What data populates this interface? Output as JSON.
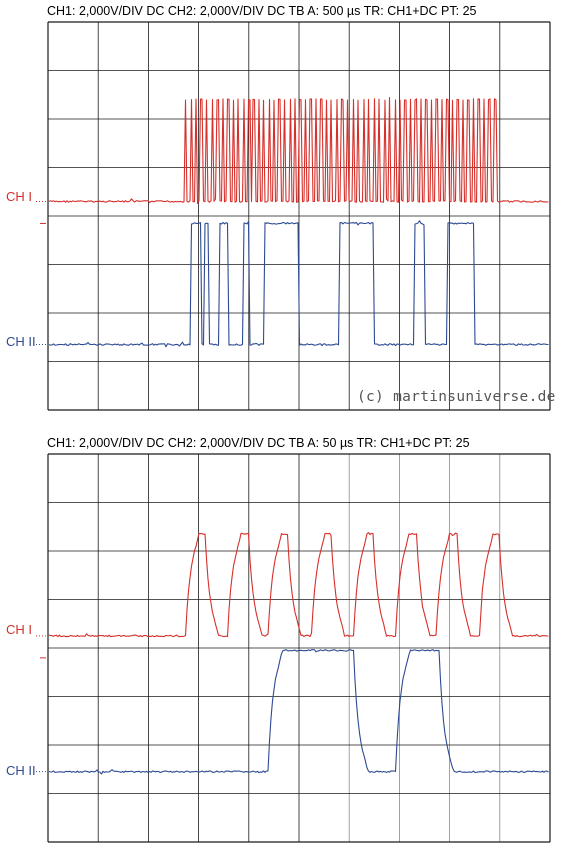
{
  "colors": {
    "ch1": "#d6302b",
    "ch2": "#2d4a92",
    "grid": "#1a1a1a",
    "grid_light": "#8a8a8a",
    "watermark": "#555555"
  },
  "watermark": "(c) martinsuniverse.de",
  "chart_data": [
    {
      "type": "line",
      "header": "CH1: 2,000V/DIV DC  CH2: 2,000V/DIV DC   TB A: 500 µs  TR: CH1+DC  PT: 25",
      "channel_labels": [
        "CH I",
        "CH II"
      ],
      "grid": {
        "x_divisions": 10,
        "y_divisions": 8
      },
      "time_per_div_us": 500,
      "volts_per_div": 2.0,
      "series": [
        {
          "name": "CH I",
          "baseline_div": 4.3,
          "high_div": 6.4,
          "edges_div": [
            2.73,
            2.76,
            2.83,
            2.86,
            2.93,
            2.96,
            3.03,
            3.07,
            3.13,
            3.18,
            3.26,
            3.29,
            3.36,
            3.4,
            3.46,
            3.5,
            3.57,
            3.61,
            3.67,
            3.71,
            3.78,
            3.81,
            3.88,
            3.92,
            3.99,
            4.03,
            4.08,
            4.12,
            4.18,
            4.22,
            4.28,
            4.32,
            4.39,
            4.43,
            4.49,
            4.52,
            4.59,
            4.63,
            4.7,
            4.74,
            4.81,
            4.84,
            4.91,
            4.95,
            5.0,
            5.05,
            5.1,
            5.14,
            5.21,
            5.25,
            5.32,
            5.36,
            5.42,
            5.46,
            5.52,
            5.56,
            5.62,
            5.66,
            5.73,
            5.77,
            5.84,
            5.88,
            5.95,
            5.99,
            6.06,
            6.1,
            6.16,
            6.2,
            6.27,
            6.31,
            6.37,
            6.41,
            6.48,
            6.52,
            6.58,
            6.62,
            6.69,
            6.73,
            6.79,
            6.83,
            6.9,
            6.94,
            7.0,
            7.04,
            7.1,
            7.14,
            7.21,
            7.25,
            7.31,
            7.35,
            7.41,
            7.45,
            7.51,
            7.55,
            7.62,
            7.66,
            7.72,
            7.76,
            7.83,
            7.87,
            7.93,
            7.97,
            8.04,
            8.08,
            8.14,
            8.18,
            8.25,
            8.29,
            8.35,
            8.39,
            8.46,
            8.5,
            8.56,
            8.6,
            8.67,
            8.71,
            8.77,
            8.81,
            8.88,
            8.93
          ]
        },
        {
          "name": "CH II",
          "baseline_div": 1.35,
          "high_div": 3.85,
          "edges_div": [
            2.85,
            3.05,
            3.1,
            3.2,
            3.4,
            3.6,
            3.9,
            4.0,
            4.3,
            5.0,
            5.8,
            6.5,
            7.3,
            7.5,
            7.95,
            8.5
          ]
        }
      ]
    },
    {
      "type": "line",
      "header": "CH1: 2,000V/DIV DC  CH2: 2,000V/DIV DC   TB A: 50 µs  TR: CH1+DC  PT: 25",
      "channel_labels": [
        "CH I",
        "CH II"
      ],
      "grid": {
        "x_divisions": 10,
        "y_divisions": 8
      },
      "time_per_div_us": 50,
      "volts_per_div": 2.0,
      "series": [
        {
          "name": "CH I",
          "baseline_div": 4.25,
          "high_div": 6.35,
          "edges_div": [
            2.75,
            3.15,
            3.6,
            4.0,
            4.4,
            4.8,
            5.25,
            5.65,
            6.1,
            6.5,
            6.95,
            7.35,
            7.75,
            8.15,
            8.6,
            9.0
          ]
        },
        {
          "name": "CH II",
          "baseline_div": 1.45,
          "high_div": 3.95,
          "edges_div": [
            4.4,
            6.1,
            6.95,
            7.8
          ]
        }
      ]
    }
  ]
}
